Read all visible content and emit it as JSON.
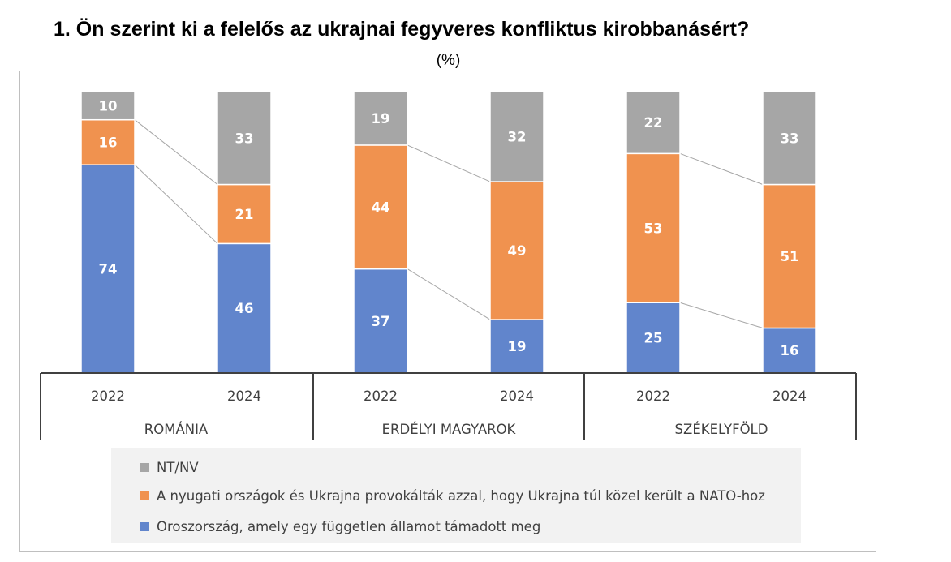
{
  "chart_data": {
    "type": "bar",
    "stacked": true,
    "title": "1.  Ön szerint ki a felelős az ukrajnai fegyveres konfliktus kirobbanásért?",
    "subtitle": "(%)",
    "groups": [
      {
        "label": "ROMÁNIA",
        "years": [
          "2022",
          "2024"
        ]
      },
      {
        "label": "ERDÉLYI MAGYAROK",
        "years": [
          "2022",
          "2024"
        ]
      },
      {
        "label": "SZÉKELYFÖLD",
        "years": [
          "2022",
          "2024"
        ]
      }
    ],
    "series": [
      {
        "name": "Oroszország, amely egy független államot támadott meg",
        "color": "#6185cc",
        "values": [
          74,
          46,
          37,
          19,
          25,
          16
        ]
      },
      {
        "name": "A nyugati országok és Ukrajna provokálták azzal, hogy Ukrajna túl közel került a NATO-hoz",
        "color": "#f0924f",
        "values": [
          16,
          21,
          44,
          49,
          53,
          51
        ]
      },
      {
        "name": "NT/NV",
        "color": "#a6a6a6",
        "values": [
          10,
          33,
          19,
          32,
          22,
          33
        ]
      }
    ],
    "legend_order": [
      2,
      1,
      0
    ],
    "legend_placement": "bottom",
    "ylim": [
      0,
      100
    ],
    "grid": false,
    "connector_lines": true
  }
}
